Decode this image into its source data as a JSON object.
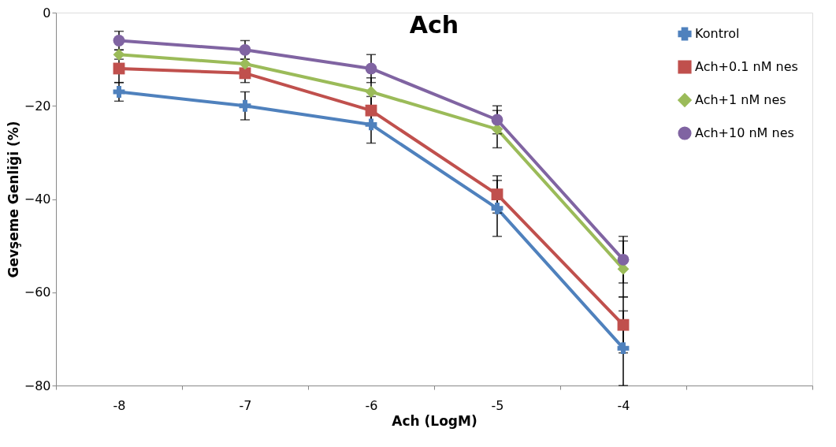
{
  "chart_data": {
    "type": "line",
    "title": "Ach",
    "xlabel": "Ach (LogM)",
    "ylabel": "Gevşeme Genliği (%)",
    "categories": [
      "-8",
      "-7",
      "-6",
      "-5",
      "-4",
      null
    ],
    "ylim": [
      -80,
      0
    ],
    "yticks": [
      -80,
      -60,
      -40,
      -20,
      0
    ],
    "grid": false,
    "legend": "top right",
    "series": [
      {
        "name": "Kontrol",
        "color": "#4f81bd",
        "marker": "cross",
        "values": [
          -17,
          -20,
          -24,
          -42,
          -72,
          null
        ],
        "errors": [
          2,
          3,
          4,
          6,
          8,
          null
        ]
      },
      {
        "name": "Ach+0.1 nM nes",
        "color": "#c0504d",
        "marker": "square",
        "values": [
          -12,
          -13,
          -21,
          -39,
          -67,
          null
        ],
        "errors": [
          3,
          2,
          3,
          4,
          6,
          null
        ]
      },
      {
        "name": "Ach+1 nM nes",
        "color": "#9bbb59",
        "marker": "diamond",
        "values": [
          -9,
          -11,
          -17,
          -25,
          -55,
          null
        ],
        "errors": [
          1,
          1,
          3,
          4,
          6,
          null
        ]
      },
      {
        "name": "Ach+10 nM nes",
        "color": "#8064a2",
        "marker": "circle",
        "values": [
          -6,
          -8,
          -12,
          -23,
          -53,
          null
        ],
        "errors": [
          2,
          2,
          3,
          3,
          5,
          null
        ]
      }
    ]
  }
}
